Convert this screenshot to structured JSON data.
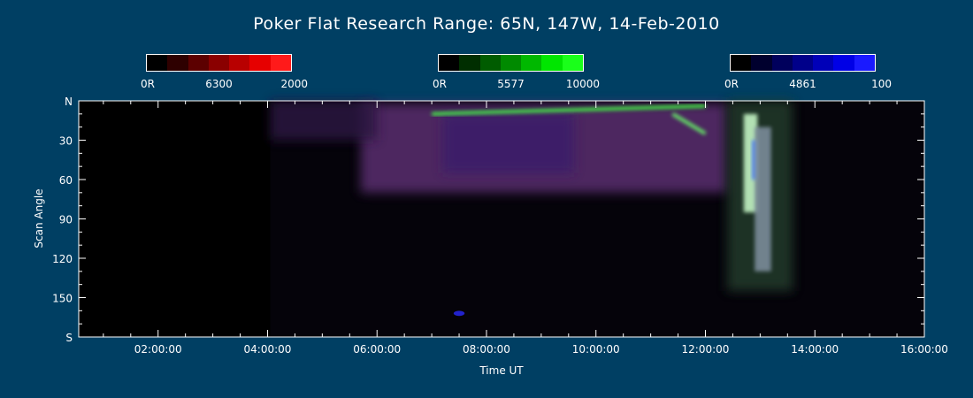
{
  "title": "Poker Flat Research Range: 65N, 147W, 14-Feb-2010",
  "colorbars": [
    {
      "label_low": "0R",
      "label_mid": "6300",
      "label_high": "2000",
      "colors": [
        "#000000",
        "#2e0000",
        "#5c0000",
        "#8a0000",
        "#b80000",
        "#e60000",
        "#ff1a1a"
      ]
    },
    {
      "label_low": "0R",
      "label_mid": "5577",
      "label_high": "10000",
      "colors": [
        "#000000",
        "#002e00",
        "#005c00",
        "#008a00",
        "#00b800",
        "#00e600",
        "#1aff1a"
      ]
    },
    {
      "label_low": "0R",
      "label_mid": "4861",
      "label_high": "100",
      "colors": [
        "#000000",
        "#00002e",
        "#00005c",
        "#00008a",
        "#0000b8",
        "#0000e6",
        "#1a1aff"
      ]
    }
  ],
  "chart_data": {
    "type": "heatmap",
    "title": "Poker Flat Research Range: 65N, 147W, 14-Feb-2010",
    "xlabel": "Time UT",
    "ylabel": "Scan Angle",
    "x_tick_labels": [
      "02:00:00",
      "04:00:00",
      "06:00:00",
      "08:00:00",
      "10:00:00",
      "12:00:00",
      "14:00:00",
      "16:00:00"
    ],
    "y_tick_labels": [
      "N",
      "30",
      "60",
      "90",
      "120",
      "150",
      "S"
    ],
    "xlim_hours": [
      0.55,
      16.0
    ],
    "ylim_deg": [
      0,
      180
    ],
    "y_tick_values": [
      0,
      30,
      60,
      90,
      120,
      150,
      180
    ],
    "x_tick_values_hours": [
      2,
      4,
      6,
      8,
      10,
      12,
      14,
      16
    ],
    "data_start_hours": 4.05,
    "emission_channels": [
      {
        "wavelength": "6300",
        "color": "#ff0000",
        "scale": "0R-2000"
      },
      {
        "wavelength": "5577",
        "color": "#00ff00",
        "scale": "0R-10000"
      },
      {
        "wavelength": "4861",
        "color": "#0000ff",
        "scale": "0R-100"
      }
    ],
    "features": [
      {
        "type": "diffuse",
        "color": "#5a2f70",
        "t_start": 5.7,
        "t_end": 12.4,
        "angle_start": 2,
        "angle_end": 70
      },
      {
        "type": "diffuse",
        "color": "#3a1f6a",
        "t_start": 7.2,
        "t_end": 9.6,
        "angle_start": 10,
        "angle_end": 55
      },
      {
        "type": "diffuse",
        "color": "#2a1840",
        "t_start": 4.05,
        "t_end": 6.0,
        "angle_start": 0,
        "angle_end": 30
      },
      {
        "type": "diffuse",
        "color": "#203a2a",
        "t_start": 12.4,
        "t_end": 13.6,
        "angle_start": 0,
        "angle_end": 145
      },
      {
        "type": "arc",
        "color": "#44ff44",
        "t_start": 7.0,
        "t_end": 12.0,
        "angle_start": 10,
        "angle_end": 4
      },
      {
        "type": "arc",
        "color": "#66ff66",
        "t_start": 11.4,
        "t_end": 12.0,
        "angle_start": 10,
        "angle_end": 25
      },
      {
        "type": "streak",
        "color": "#ccffcc",
        "t_start": 12.7,
        "t_end": 12.95,
        "angle_start": 10,
        "angle_end": 85
      },
      {
        "type": "streak",
        "color": "#4477ff",
        "t_start": 12.85,
        "t_end": 12.95,
        "angle_start": 30,
        "angle_end": 60
      },
      {
        "type": "streak",
        "color": "#8090a0",
        "t_start": 12.9,
        "t_end": 13.2,
        "angle_start": 20,
        "angle_end": 130
      },
      {
        "type": "spot",
        "color": "#2222cc",
        "t_start": 7.4,
        "t_end": 7.6,
        "angle_start": 160,
        "angle_end": 164
      }
    ]
  }
}
